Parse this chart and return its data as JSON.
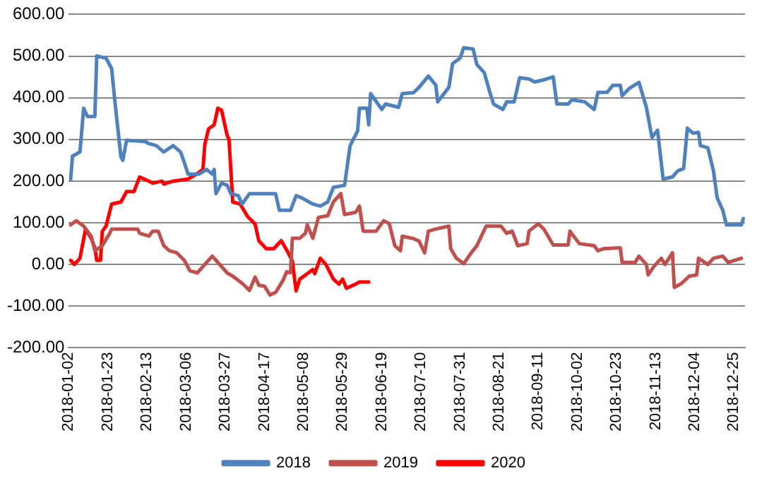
{
  "chart_data": {
    "type": "line",
    "legend": "bottom",
    "grid": "y",
    "marker": "none",
    "line_style": "solid",
    "xlim": [
      "2018-01-02",
      "2018-12-31"
    ],
    "xticks": [
      "2018-01-02",
      "2018-01-23",
      "2018-02-13",
      "2018-03-06",
      "2018-03-27",
      "2018-04-17",
      "2018-05-08",
      "2018-05-29",
      "2018-06-19",
      "2018-07-10",
      "2018-07-31",
      "2018-08-21",
      "2018-09-11",
      "2018-10-02",
      "2018-10-23",
      "2018-11-13",
      "2018-12-04",
      "2018-12-25"
    ],
    "ylim": [
      -200,
      600
    ],
    "yticks": [
      {
        "value": -200,
        "label": "-200.00"
      },
      {
        "value": -100,
        "label": "-100.00"
      },
      {
        "value": 0,
        "label": "0.00"
      },
      {
        "value": 100,
        "label": "100.00"
      },
      {
        "value": 200,
        "label": "200.00"
      },
      {
        "value": 300,
        "label": "300.00"
      },
      {
        "value": 400,
        "label": "400.00"
      },
      {
        "value": 500,
        "label": "500.00"
      },
      {
        "value": 600,
        "label": "600.00"
      }
    ],
    "series": [
      {
        "name": "2018",
        "color": "#4f81bd",
        "x": [
          "2018-01-03",
          "2018-01-04",
          "2018-01-08",
          "2018-01-10",
          "2018-01-12",
          "2018-01-16",
          "2018-01-17",
          "2018-01-22",
          "2018-01-25",
          "2018-01-27",
          "2018-01-30",
          "2018-01-31",
          "2018-02-02",
          "2018-02-12",
          "2018-02-14",
          "2018-02-18",
          "2018-02-22",
          "2018-02-27",
          "2018-03-03",
          "2018-03-05",
          "2018-03-07",
          "2018-03-13",
          "2018-03-17",
          "2018-03-20",
          "2018-03-21",
          "2018-03-22",
          "2018-03-25",
          "2018-03-28",
          "2018-03-30",
          "2018-04-03",
          "2018-04-05",
          "2018-04-09",
          "2018-04-23",
          "2018-04-25",
          "2018-05-01",
          "2018-05-04",
          "2018-05-07",
          "2018-05-13",
          "2018-05-17",
          "2018-05-21",
          "2018-05-24",
          "2018-05-30",
          "2018-06-02",
          "2018-06-06",
          "2018-06-07",
          "2018-06-11",
          "2018-06-12",
          "2018-06-13",
          "2018-06-19",
          "2018-06-21",
          "2018-06-28",
          "2018-06-30",
          "2018-07-06",
          "2018-07-09",
          "2018-07-14",
          "2018-07-18",
          "2018-07-19",
          "2018-07-25",
          "2018-07-27",
          "2018-07-31",
          "2018-08-02",
          "2018-08-07",
          "2018-08-09",
          "2018-08-13",
          "2018-08-16",
          "2018-08-18",
          "2018-08-23",
          "2018-08-25",
          "2018-08-29",
          "2018-09-01",
          "2018-09-06",
          "2018-09-09",
          "2018-09-14",
          "2018-09-19",
          "2018-09-21",
          "2018-09-27",
          "2018-09-29",
          "2018-10-06",
          "2018-10-11",
          "2018-10-13",
          "2018-10-18",
          "2018-10-21",
          "2018-10-25",
          "2018-10-26",
          "2018-10-30",
          "2018-11-04",
          "2018-11-08",
          "2018-11-11",
          "2018-11-14",
          "2018-11-17",
          "2018-11-22",
          "2018-11-25",
          "2018-11-28",
          "2018-11-30",
          "2018-12-03",
          "2018-12-06",
          "2018-12-07",
          "2018-12-11",
          "2018-12-14",
          "2018-12-16",
          "2018-12-19",
          "2018-12-21",
          "2018-12-29",
          "2018-12-30"
        ],
        "values": [
          205,
          260,
          270,
          375,
          355,
          355,
          500,
          495,
          470,
          380,
          258,
          250,
          298,
          295,
          290,
          285,
          270,
          285,
          270,
          245,
          217,
          217,
          228,
          217,
          228,
          170,
          195,
          190,
          170,
          165,
          145,
          170,
          170,
          130,
          130,
          165,
          160,
          145,
          140,
          150,
          185,
          190,
          285,
          320,
          375,
          375,
          335,
          410,
          372,
          385,
          377,
          410,
          412,
          425,
          452,
          430,
          390,
          425,
          482,
          495,
          520,
          517,
          480,
          460,
          413,
          385,
          372,
          390,
          390,
          448,
          445,
          438,
          443,
          450,
          385,
          385,
          395,
          390,
          372,
          413,
          413,
          430,
          430,
          405,
          423,
          437,
          377,
          305,
          322,
          205,
          210,
          225,
          230,
          327,
          315,
          317,
          285,
          280,
          225,
          160,
          130,
          95,
          95,
          110
        ]
      },
      {
        "name": "2019",
        "color": "#c0504d",
        "x": [
          "2018-01-03",
          "2018-01-06",
          "2018-01-10",
          "2018-01-14",
          "2018-01-16",
          "2018-01-20",
          "2018-01-24",
          "2018-01-25",
          "2018-02-08",
          "2018-02-09",
          "2018-02-14",
          "2018-02-16",
          "2018-02-19",
          "2018-02-22",
          "2018-02-25",
          "2018-03-01",
          "2018-03-05",
          "2018-03-08",
          "2018-03-12",
          "2018-03-16",
          "2018-03-20",
          "2018-03-22",
          "2018-03-28",
          "2018-03-31",
          "2018-04-05",
          "2018-04-09",
          "2018-04-12",
          "2018-04-14",
          "2018-04-17",
          "2018-04-20",
          "2018-04-23",
          "2018-04-27",
          "2018-04-29",
          "2018-05-01",
          "2018-05-02",
          "2018-05-06",
          "2018-05-09",
          "2018-05-10",
          "2018-05-13",
          "2018-05-16",
          "2018-05-21",
          "2018-05-24",
          "2018-05-28",
          "2018-05-30",
          "2018-06-05",
          "2018-06-07",
          "2018-06-09",
          "2018-06-16",
          "2018-06-20",
          "2018-06-23",
          "2018-06-26",
          "2018-06-29",
          "2018-06-30",
          "2018-07-06",
          "2018-07-09",
          "2018-07-12",
          "2018-07-14",
          "2018-07-18",
          "2018-07-25",
          "2018-07-26",
          "2018-07-29",
          "2018-08-02",
          "2018-08-06",
          "2018-08-09",
          "2018-08-14",
          "2018-08-22",
          "2018-08-25",
          "2018-08-28",
          "2018-08-31",
          "2018-09-05",
          "2018-09-06",
          "2018-09-11",
          "2018-09-14",
          "2018-09-19",
          "2018-09-27",
          "2018-09-28",
          "2018-10-03",
          "2018-10-11",
          "2018-10-13",
          "2018-10-16",
          "2018-10-25",
          "2018-10-26",
          "2018-11-02",
          "2018-11-04",
          "2018-11-08",
          "2018-11-09",
          "2018-11-12",
          "2018-11-16",
          "2018-11-18",
          "2018-11-22",
          "2018-11-23",
          "2018-11-27",
          "2018-12-01",
          "2018-12-05",
          "2018-12-06",
          "2018-12-11",
          "2018-12-14",
          "2018-12-19",
          "2018-12-22",
          "2018-12-29"
        ],
        "values": [
          95,
          105,
          92,
          68,
          33,
          45,
          75,
          85,
          85,
          75,
          68,
          80,
          80,
          45,
          33,
          28,
          10,
          -15,
          -20,
          0,
          20,
          10,
          -20,
          -28,
          -45,
          -62,
          -30,
          -50,
          -52,
          -73,
          -67,
          -38,
          -17,
          -20,
          63,
          63,
          75,
          95,
          63,
          113,
          117,
          150,
          170,
          120,
          125,
          140,
          80,
          80,
          105,
          98,
          45,
          33,
          68,
          62,
          56,
          28,
          80,
          85,
          92,
          38,
          15,
          2,
          28,
          45,
          92,
          92,
          75,
          80,
          45,
          50,
          80,
          98,
          85,
          47,
          47,
          80,
          50,
          45,
          33,
          38,
          40,
          5,
          5,
          20,
          0,
          -25,
          -5,
          15,
          0,
          28,
          -55,
          -45,
          -28,
          -25,
          15,
          0,
          15,
          20,
          5,
          15
        ]
      },
      {
        "name": "2020",
        "color": "#ff0000",
        "x": [
          "2018-01-03",
          "2018-01-05",
          "2018-01-08",
          "2018-01-11",
          "2018-01-14",
          "2018-01-16",
          "2018-01-17",
          "2018-01-19",
          "2018-01-20",
          "2018-01-22",
          "2018-01-25",
          "2018-01-30",
          "2018-02-02",
          "2018-02-06",
          "2018-02-09",
          "2018-02-14",
          "2018-02-16",
          "2018-02-21",
          "2018-02-22",
          "2018-02-27",
          "2018-03-07",
          "2018-03-12",
          "2018-03-15",
          "2018-03-16",
          "2018-03-18",
          "2018-03-21",
          "2018-03-23",
          "2018-03-25",
          "2018-03-28",
          "2018-03-29",
          "2018-03-31",
          "2018-04-04",
          "2018-04-08",
          "2018-04-12",
          "2018-04-14",
          "2018-04-18",
          "2018-04-22",
          "2018-04-26",
          "2018-04-27",
          "2018-04-30",
          "2018-05-02",
          "2018-05-04",
          "2018-05-06",
          "2018-05-10",
          "2018-05-13",
          "2018-05-14",
          "2018-05-17",
          "2018-05-20",
          "2018-05-24",
          "2018-05-27",
          "2018-05-29",
          "2018-05-31",
          "2018-06-05",
          "2018-06-07",
          "2018-06-12"
        ],
        "values": [
          10,
          0,
          15,
          85,
          63,
          40,
          10,
          10,
          80,
          92,
          145,
          150,
          175,
          175,
          210,
          200,
          195,
          200,
          193,
          200,
          205,
          218,
          228,
          288,
          325,
          335,
          375,
          370,
          310,
          300,
          150,
          145,
          115,
          97,
          57,
          38,
          38,
          57,
          50,
          26,
          8,
          -63,
          -35,
          -22,
          -12,
          -22,
          15,
          0,
          -35,
          -47,
          -35,
          -57,
          -47,
          -42,
          -42
        ]
      }
    ]
  }
}
